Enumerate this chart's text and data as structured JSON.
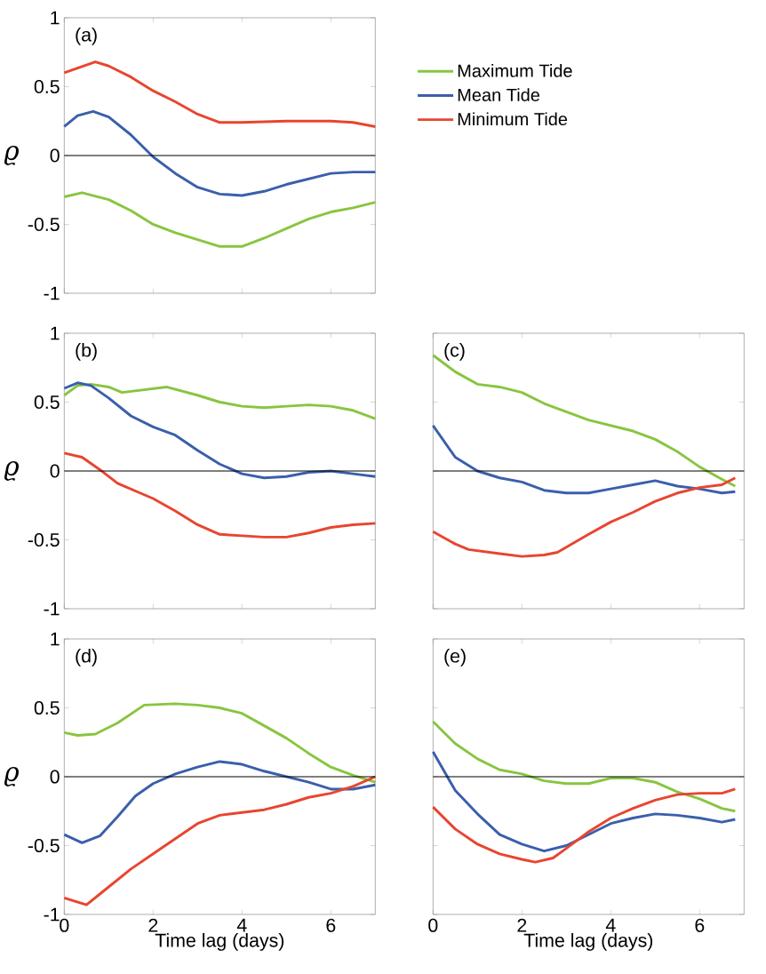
{
  "chart_data": [
    {
      "type": "line",
      "title": "(a)",
      "ylabel": "ϱ",
      "xlim": [
        0,
        7
      ],
      "ylim": [
        -1,
        1
      ],
      "xticks": [
        0,
        2,
        4,
        6
      ],
      "yticks": [
        -1,
        -0.5,
        0,
        0.5,
        1
      ],
      "tick_labels": "y",
      "legend": "right",
      "ref_lines": [
        {
          "axis": "y",
          "value": 0,
          "color": "#000000"
        }
      ],
      "series": [
        {
          "name": "Maximum Tide",
          "color": "#88c540",
          "x": [
            0,
            0.4,
            1,
            1.5,
            2,
            2.5,
            3,
            3.5,
            4,
            4.5,
            5,
            5.5,
            6,
            6.5,
            7
          ],
          "values": [
            -0.3,
            -0.27,
            -0.32,
            -0.4,
            -0.5,
            -0.56,
            -0.61,
            -0.66,
            -0.66,
            -0.6,
            -0.53,
            -0.46,
            -0.41,
            -0.38,
            -0.34
          ]
        },
        {
          "name": "Mean Tide",
          "color": "#3a5fab",
          "x": [
            0,
            0.3,
            0.65,
            1,
            1.5,
            2,
            2.5,
            3,
            3.5,
            4,
            4.5,
            5,
            5.5,
            6,
            6.5,
            7
          ],
          "values": [
            0.21,
            0.29,
            0.32,
            0.28,
            0.15,
            -0.01,
            -0.13,
            -0.23,
            -0.28,
            -0.29,
            -0.26,
            -0.21,
            -0.17,
            -0.13,
            -0.12,
            -0.12
          ]
        },
        {
          "name": "Minimum Tide",
          "color": "#e8452f",
          "x": [
            0,
            0.7,
            1,
            1.5,
            2,
            2.5,
            3,
            3.5,
            4,
            5,
            6,
            6.5,
            7
          ],
          "values": [
            0.6,
            0.68,
            0.65,
            0.57,
            0.47,
            0.39,
            0.3,
            0.24,
            0.24,
            0.25,
            0.25,
            0.24,
            0.21
          ]
        }
      ]
    },
    {
      "type": "line",
      "title": "(b)",
      "ylabel": "ϱ",
      "xlim": [
        0,
        7
      ],
      "ylim": [
        -1,
        1
      ],
      "xticks": [
        0,
        2,
        4,
        6
      ],
      "yticks": [
        -1,
        -0.5,
        0,
        0.5,
        1
      ],
      "tick_labels": "y",
      "ref_lines": [
        {
          "axis": "y",
          "value": 0,
          "color": "#000000"
        }
      ],
      "series": [
        {
          "color": "#88c540",
          "x": [
            0,
            0.3,
            0.6,
            1,
            1.3,
            1.8,
            2.3,
            3,
            3.5,
            4,
            4.5,
            5,
            5.5,
            6,
            6.5,
            7
          ],
          "values": [
            0.55,
            0.62,
            0.63,
            0.61,
            0.57,
            0.59,
            0.61,
            0.55,
            0.5,
            0.47,
            0.46,
            0.47,
            0.48,
            0.47,
            0.44,
            0.38
          ]
        },
        {
          "color": "#3a5fab",
          "x": [
            0,
            0.3,
            0.6,
            1,
            1.5,
            2,
            2.5,
            3,
            3.5,
            4,
            4.5,
            5,
            5.5,
            6,
            6.5,
            7
          ],
          "values": [
            0.6,
            0.64,
            0.62,
            0.53,
            0.4,
            0.32,
            0.26,
            0.15,
            0.05,
            -0.02,
            -0.05,
            -0.04,
            -0.01,
            0,
            -0.02,
            -0.04
          ]
        },
        {
          "color": "#e8452f",
          "x": [
            0,
            0.4,
            0.8,
            1.2,
            2,
            2.5,
            3,
            3.5,
            4,
            4.5,
            5,
            5.5,
            6,
            6.5,
            7
          ],
          "values": [
            0.13,
            0.1,
            0.01,
            -0.09,
            -0.2,
            -0.29,
            -0.39,
            -0.46,
            -0.47,
            -0.48,
            -0.48,
            -0.45,
            -0.41,
            -0.39,
            -0.38
          ]
        }
      ]
    },
    {
      "type": "line",
      "title": "(c)",
      "xlim": [
        0,
        7
      ],
      "ylim": [
        -1,
        1
      ],
      "xticks": [
        0,
        2,
        4,
        6
      ],
      "yticks": [
        -1,
        -0.5,
        0,
        0.5,
        1
      ],
      "tick_labels": false,
      "ref_lines": [
        {
          "axis": "y",
          "value": 0,
          "color": "#000000"
        }
      ],
      "series": [
        {
          "color": "#88c540",
          "x": [
            0,
            0.5,
            1,
            1.5,
            2,
            2.5,
            3,
            3.5,
            4,
            4.5,
            5,
            5.5,
            6,
            6.5,
            6.8
          ],
          "values": [
            0.84,
            0.72,
            0.63,
            0.61,
            0.57,
            0.49,
            0.43,
            0.37,
            0.33,
            0.29,
            0.23,
            0.14,
            0.03,
            -0.06,
            -0.11
          ]
        },
        {
          "color": "#3a5fab",
          "x": [
            0,
            0.5,
            1,
            1.5,
            2,
            2.5,
            3,
            3.5,
            4,
            4.5,
            5,
            5.5,
            6,
            6.5,
            6.8
          ],
          "values": [
            0.33,
            0.1,
            0.0,
            -0.05,
            -0.08,
            -0.14,
            -0.16,
            -0.16,
            -0.13,
            -0.1,
            -0.07,
            -0.11,
            -0.13,
            -0.16,
            -0.15
          ]
        },
        {
          "color": "#e8452f",
          "x": [
            0,
            0.5,
            0.8,
            1.5,
            2,
            2.5,
            2.8,
            3.5,
            4,
            4.5,
            5,
            5.5,
            6,
            6.5,
            6.8
          ],
          "values": [
            -0.44,
            -0.53,
            -0.57,
            -0.6,
            -0.62,
            -0.61,
            -0.59,
            -0.46,
            -0.37,
            -0.3,
            -0.22,
            -0.16,
            -0.12,
            -0.1,
            -0.05
          ]
        }
      ]
    },
    {
      "type": "line",
      "title": "(d)",
      "ylabel": "ϱ",
      "xlabel": "Time lag (days)",
      "xlim": [
        0,
        7
      ],
      "ylim": [
        -1,
        1
      ],
      "xticks": [
        0,
        2,
        4,
        6
      ],
      "yticks": [
        -1,
        -0.5,
        0,
        0.5,
        1
      ],
      "ref_lines": [
        {
          "axis": "y",
          "value": 0,
          "color": "#000000"
        }
      ],
      "series": [
        {
          "color": "#88c540",
          "x": [
            0,
            0.3,
            0.7,
            1.2,
            1.8,
            2.5,
            3,
            3.5,
            4,
            4.5,
            5,
            5.5,
            6,
            6.5,
            7
          ],
          "values": [
            0.32,
            0.3,
            0.31,
            0.39,
            0.52,
            0.53,
            0.52,
            0.5,
            0.46,
            0.37,
            0.28,
            0.17,
            0.07,
            0.01,
            -0.04
          ]
        },
        {
          "color": "#3a5fab",
          "x": [
            0,
            0.4,
            0.8,
            1.2,
            1.6,
            2,
            2.5,
            3,
            3.5,
            4,
            4.5,
            5,
            5.5,
            6,
            6.5,
            7
          ],
          "values": [
            -0.42,
            -0.48,
            -0.43,
            -0.29,
            -0.14,
            -0.05,
            0.02,
            0.07,
            0.11,
            0.09,
            0.04,
            0,
            -0.04,
            -0.09,
            -0.09,
            -0.06
          ]
        },
        {
          "color": "#e8452f",
          "x": [
            0,
            0.5,
            1,
            1.5,
            2,
            2.5,
            3,
            3.5,
            4,
            4.5,
            5,
            5.5,
            6,
            6.5,
            7
          ],
          "values": [
            -0.88,
            -0.93,
            -0.8,
            -0.67,
            -0.56,
            -0.45,
            -0.34,
            -0.28,
            -0.26,
            -0.24,
            -0.2,
            -0.15,
            -0.12,
            -0.07,
            0
          ]
        }
      ]
    },
    {
      "type": "line",
      "title": "(e)",
      "xlabel": "Time lag (days)",
      "xlim": [
        0,
        7
      ],
      "ylim": [
        -1,
        1
      ],
      "xticks": [
        0,
        2,
        4,
        6
      ],
      "yticks": [
        -1,
        -0.5,
        0,
        0.5,
        1
      ],
      "tick_labels": "x",
      "ref_lines": [
        {
          "axis": "y",
          "value": 0,
          "color": "#000000"
        }
      ],
      "series": [
        {
          "color": "#88c540",
          "x": [
            0,
            0.5,
            1,
            1.5,
            2,
            2.5,
            3,
            3.5,
            4,
            4.5,
            5,
            5.5,
            6,
            6.5,
            6.8
          ],
          "values": [
            0.4,
            0.24,
            0.13,
            0.05,
            0.02,
            -0.03,
            -0.05,
            -0.05,
            -0.01,
            -0.01,
            -0.04,
            -0.11,
            -0.16,
            -0.23,
            -0.25
          ]
        },
        {
          "color": "#3a5fab",
          "x": [
            0,
            0.5,
            1,
            1.5,
            2,
            2.5,
            3,
            3.5,
            4,
            4.5,
            5,
            5.5,
            6,
            6.5,
            6.8
          ],
          "values": [
            0.18,
            -0.1,
            -0.27,
            -0.42,
            -0.49,
            -0.54,
            -0.5,
            -0.42,
            -0.34,
            -0.3,
            -0.27,
            -0.28,
            -0.3,
            -0.33,
            -0.31
          ]
        },
        {
          "color": "#e8452f",
          "x": [
            0,
            0.5,
            1,
            1.5,
            2,
            2.3,
            2.7,
            3,
            3.5,
            4,
            4.5,
            5,
            5.5,
            6,
            6.5,
            6.8
          ],
          "values": [
            -0.22,
            -0.38,
            -0.49,
            -0.56,
            -0.6,
            -0.62,
            -0.59,
            -0.52,
            -0.4,
            -0.3,
            -0.23,
            -0.17,
            -0.13,
            -0.12,
            -0.12,
            -0.09
          ]
        }
      ]
    }
  ]
}
